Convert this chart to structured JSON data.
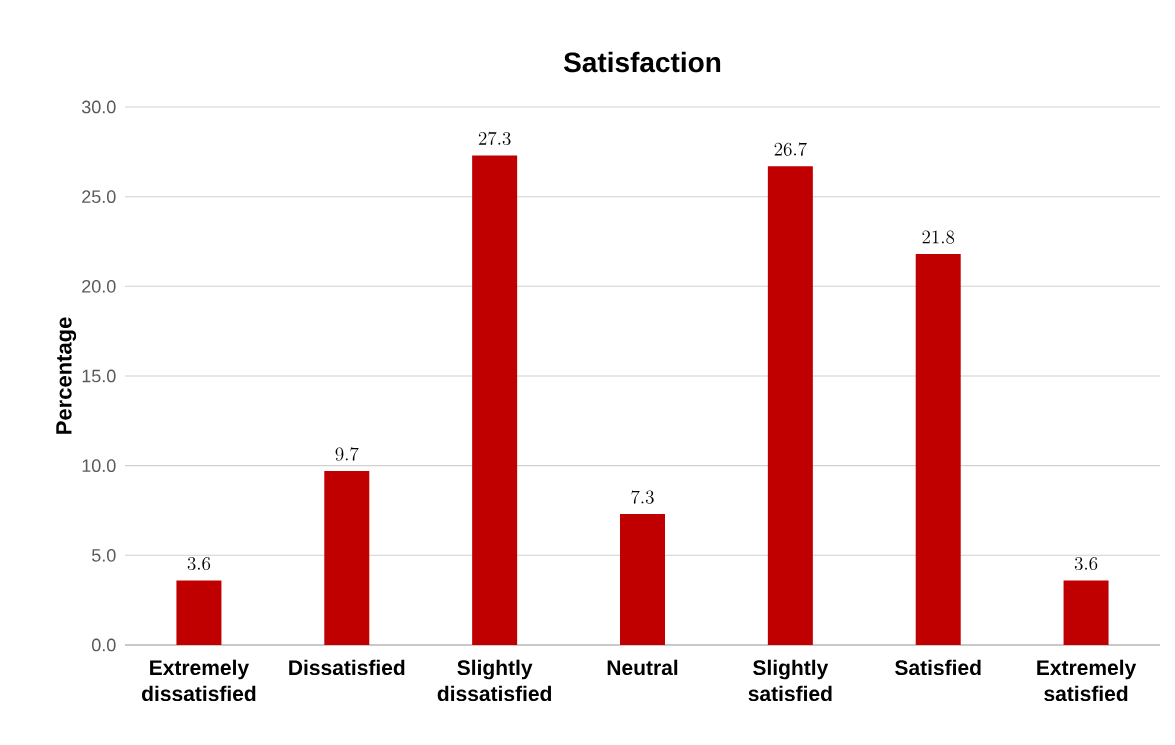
{
  "chart_data": {
    "type": "bar",
    "title": "Satisfaction",
    "ylabel": "Percentage",
    "categories": [
      "Extremely dissatisfied",
      "Dissatisfied",
      "Slightly dissatisfied",
      "Neutral",
      "Slightly satisfied",
      "Satisfied",
      "Extremely satisfied"
    ],
    "values": [
      3.6,
      9.7,
      27.3,
      7.3,
      26.7,
      21.8,
      3.6
    ],
    "color": "#c00000",
    "ylim": [
      0,
      30
    ],
    "yticks": [
      {
        "value": 0,
        "label": "0.0"
      },
      {
        "value": 5,
        "label": "5.0"
      },
      {
        "value": 10,
        "label": "10.0"
      },
      {
        "value": 15,
        "label": "15.0"
      },
      {
        "value": 20,
        "label": "20.0"
      },
      {
        "value": 25,
        "label": "25.0"
      },
      {
        "value": 30,
        "label": "30.0"
      }
    ],
    "grid": "y",
    "data_labels": true
  }
}
